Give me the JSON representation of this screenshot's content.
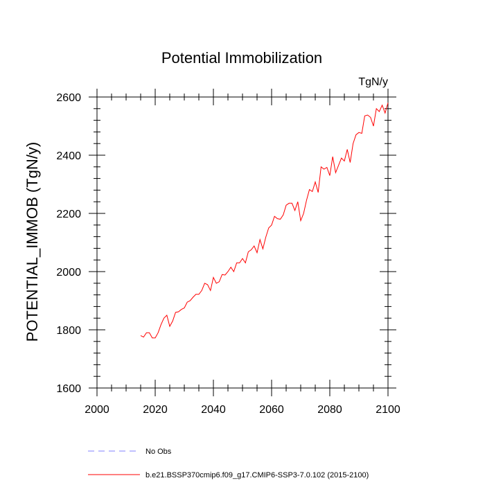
{
  "chart_data": {
    "type": "line",
    "title": "Potential Immobilization",
    "units_label": "TgN/y",
    "ylabel": "POTENTIAL_IMMOB  (TgN/y)",
    "xlabel": "",
    "xlim": [
      2000,
      2100
    ],
    "ylim": [
      1600,
      2600
    ],
    "x_ticks": [
      "2000",
      "2020",
      "2040",
      "2060",
      "2080",
      "2100"
    ],
    "y_ticks": [
      "1600",
      "1800",
      "2000",
      "2200",
      "2400",
      "2600"
    ],
    "x_minor_step": 5,
    "y_minor_step": 40,
    "grid": false,
    "legend_position": "bottom-left",
    "legend": [
      {
        "label": "No Obs",
        "color": "#8080ff",
        "style": "dashed"
      },
      {
        "label": "b.e21.BSSP370cmip6.f09_g17.CMIP6-SSP3-7.0.102 (2015-2100)",
        "color": "#ff0000",
        "style": "solid"
      }
    ],
    "series": [
      {
        "name": "b.e21.BSSP370cmip6.f09_g17.CMIP6-SSP3-7.0.102 (2015-2100)",
        "color": "#ff0000",
        "x": [
          2015,
          2016,
          2017,
          2018,
          2019,
          2020,
          2021,
          2022,
          2023,
          2024,
          2025,
          2026,
          2027,
          2028,
          2029,
          2030,
          2031,
          2032,
          2033,
          2034,
          2035,
          2036,
          2037,
          2038,
          2039,
          2040,
          2041,
          2042,
          2043,
          2044,
          2045,
          2046,
          2047,
          2048,
          2049,
          2050,
          2051,
          2052,
          2053,
          2054,
          2055,
          2056,
          2057,
          2058,
          2059,
          2060,
          2061,
          2062,
          2063,
          2064,
          2065,
          2066,
          2067,
          2068,
          2069,
          2070,
          2071,
          2072,
          2073,
          2074,
          2075,
          2076,
          2077,
          2078,
          2079,
          2080,
          2081,
          2082,
          2083,
          2084,
          2085,
          2086,
          2087,
          2088,
          2089,
          2090,
          2091,
          2092,
          2093,
          2094,
          2095,
          2096,
          2097,
          2098,
          2099,
          2100
        ],
        "y": [
          1780,
          1775,
          1790,
          1790,
          1772,
          1772,
          1790,
          1818,
          1840,
          1850,
          1812,
          1830,
          1860,
          1862,
          1870,
          1875,
          1895,
          1900,
          1912,
          1922,
          1922,
          1935,
          1960,
          1955,
          1935,
          1980,
          1960,
          1965,
          1990,
          1988,
          2000,
          2015,
          2000,
          2030,
          2030,
          2045,
          2030,
          2068,
          2075,
          2088,
          2065,
          2110,
          2078,
          2118,
          2150,
          2160,
          2190,
          2182,
          2180,
          2195,
          2228,
          2235,
          2235,
          2210,
          2240,
          2175,
          2200,
          2245,
          2282,
          2275,
          2308,
          2272,
          2360,
          2352,
          2358,
          2330,
          2395,
          2340,
          2365,
          2390,
          2380,
          2420,
          2375,
          2440,
          2470,
          2478,
          2475,
          2535,
          2538,
          2530,
          2500,
          2560,
          2550,
          2572,
          2545,
          2580
        ]
      }
    ]
  }
}
